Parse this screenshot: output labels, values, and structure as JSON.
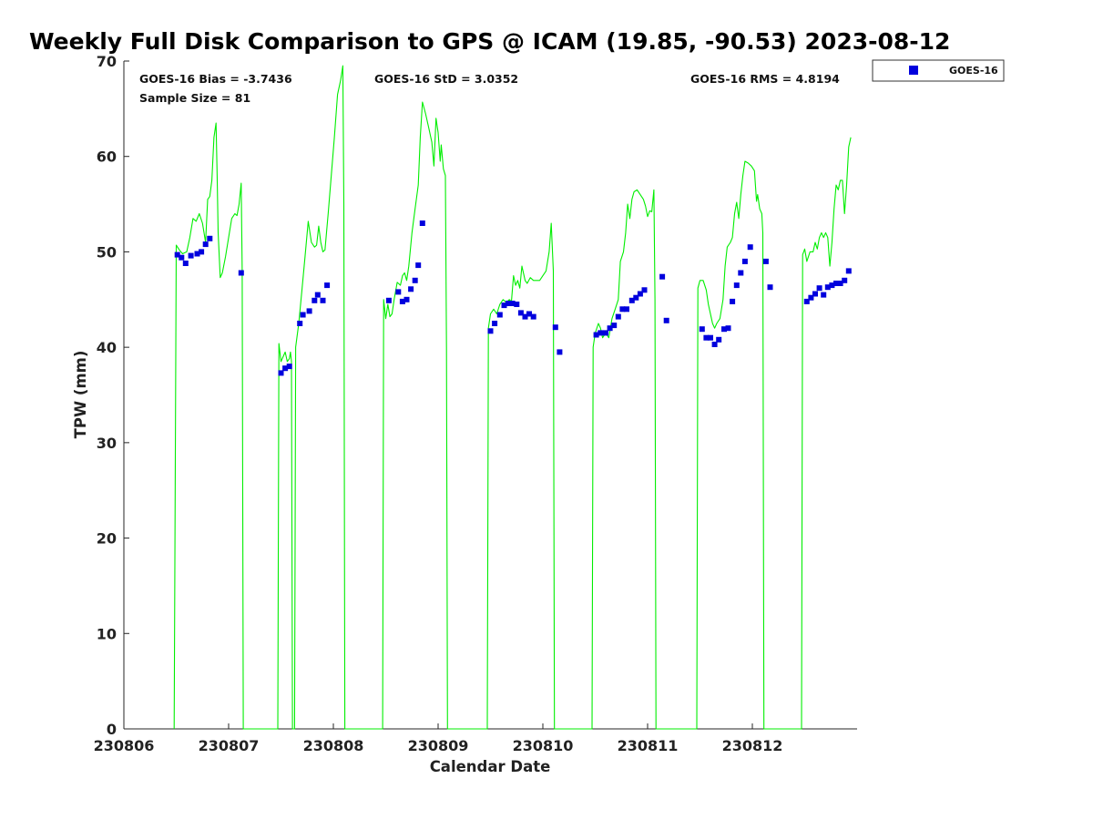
{
  "chart_data": {
    "type": "line+scatter",
    "title": "Weekly Full Disk Comparison to GPS @ ICAM (19.85, -90.53) 2023-08-12",
    "xlabel": "Calendar Date",
    "ylabel": "TPW (mm)",
    "xlim": [
      0,
      7
    ],
    "ylim": [
      0,
      70
    ],
    "x_ticks": [
      {
        "x": 0,
        "label": "230806"
      },
      {
        "x": 1,
        "label": "230807"
      },
      {
        "x": 2,
        "label": "230808"
      },
      {
        "x": 3,
        "label": "230809"
      },
      {
        "x": 4,
        "label": "230810"
      },
      {
        "x": 5,
        "label": "230811"
      },
      {
        "x": 6,
        "label": "230812"
      }
    ],
    "y_ticks": [
      0,
      10,
      20,
      30,
      40,
      50,
      60,
      70
    ],
    "grid": false,
    "legend": {
      "position": "outside-top-right",
      "entries": [
        "GOES-16"
      ]
    },
    "stats": {
      "bias": "GOES-16 Bias = -3.7436",
      "sample": "Sample Size = 81",
      "std": "GOES-16 StD = 3.0352",
      "rms": "GOES-16 RMS = 4.8194"
    },
    "colors": {
      "gps": "#00ee00",
      "goes": "#0000dd"
    },
    "gps_line": [
      [
        0.48,
        0
      ],
      [
        0.5,
        50.7
      ],
      [
        0.53,
        50.2
      ],
      [
        0.56,
        49.8
      ],
      [
        0.6,
        50.0
      ],
      [
        0.63,
        51.5
      ],
      [
        0.66,
        53.5
      ],
      [
        0.69,
        53.2
      ],
      [
        0.72,
        54.0
      ],
      [
        0.75,
        53.0
      ],
      [
        0.78,
        51.0
      ],
      [
        0.8,
        55.5
      ],
      [
        0.82,
        55.8
      ],
      [
        0.84,
        57.5
      ],
      [
        0.86,
        62.0
      ],
      [
        0.88,
        63.5
      ],
      [
        0.89,
        58.0
      ],
      [
        0.9,
        52.0
      ],
      [
        0.92,
        47.3
      ],
      [
        0.94,
        47.8
      ],
      [
        0.97,
        49.5
      ],
      [
        1.0,
        51.5
      ],
      [
        1.03,
        53.5
      ],
      [
        1.06,
        54.0
      ],
      [
        1.08,
        53.8
      ],
      [
        1.1,
        55.0
      ],
      [
        1.12,
        57.2
      ],
      [
        1.13,
        48.0
      ],
      [
        1.14,
        0
      ],
      [
        1.47,
        0
      ],
      [
        1.48,
        40.4
      ],
      [
        1.5,
        38.5
      ],
      [
        1.52,
        39.0
      ],
      [
        1.54,
        39.5
      ],
      [
        1.56,
        38.5
      ],
      [
        1.58,
        38.8
      ],
      [
        1.59,
        39.5
      ],
      [
        1.6,
        38.5
      ],
      [
        1.61,
        0
      ],
      [
        1.63,
        0
      ],
      [
        1.64,
        40.0
      ],
      [
        1.67,
        42.5
      ],
      [
        1.7,
        46.0
      ],
      [
        1.73,
        49.5
      ],
      [
        1.76,
        53.2
      ],
      [
        1.79,
        51.0
      ],
      [
        1.82,
        50.5
      ],
      [
        1.84,
        50.7
      ],
      [
        1.86,
        52.7
      ],
      [
        1.88,
        51.0
      ],
      [
        1.9,
        50.0
      ],
      [
        1.92,
        50.2
      ],
      [
        1.95,
        54.0
      ],
      [
        1.98,
        58.0
      ],
      [
        2.01,
        62.0
      ],
      [
        2.04,
        66.5
      ],
      [
        2.07,
        68.0
      ],
      [
        2.09,
        69.5
      ],
      [
        2.1,
        55.0
      ],
      [
        2.11,
        0
      ],
      [
        2.47,
        0
      ],
      [
        2.48,
        45.0
      ],
      [
        2.5,
        43.0
      ],
      [
        2.52,
        44.5
      ],
      [
        2.54,
        43.2
      ],
      [
        2.56,
        43.5
      ],
      [
        2.58,
        45.0
      ],
      [
        2.61,
        46.8
      ],
      [
        2.64,
        46.5
      ],
      [
        2.66,
        47.5
      ],
      [
        2.68,
        47.8
      ],
      [
        2.7,
        47.0
      ],
      [
        2.72,
        48.5
      ],
      [
        2.75,
        52.0
      ],
      [
        2.78,
        54.5
      ],
      [
        2.81,
        57.0
      ],
      [
        2.83,
        62.0
      ],
      [
        2.85,
        65.7
      ],
      [
        2.88,
        64.5
      ],
      [
        2.91,
        63.0
      ],
      [
        2.94,
        61.5
      ],
      [
        2.96,
        59.0
      ],
      [
        2.98,
        64.0
      ],
      [
        3.0,
        62.5
      ],
      [
        3.02,
        59.5
      ],
      [
        3.03,
        61.2
      ],
      [
        3.05,
        58.7
      ],
      [
        3.07,
        58.0
      ],
      [
        3.08,
        40.0
      ],
      [
        3.09,
        0
      ],
      [
        3.47,
        0
      ],
      [
        3.48,
        42.0
      ],
      [
        3.5,
        43.5
      ],
      [
        3.53,
        44.0
      ],
      [
        3.56,
        43.5
      ],
      [
        3.59,
        44.5
      ],
      [
        3.62,
        45.0
      ],
      [
        3.65,
        44.7
      ],
      [
        3.68,
        45.0
      ],
      [
        3.7,
        44.8
      ],
      [
        3.72,
        47.5
      ],
      [
        3.74,
        46.5
      ],
      [
        3.76,
        47.0
      ],
      [
        3.78,
        46.2
      ],
      [
        3.8,
        48.5
      ],
      [
        3.83,
        47.0
      ],
      [
        3.85,
        46.7
      ],
      [
        3.88,
        47.3
      ],
      [
        3.91,
        47.0
      ],
      [
        3.94,
        47.0
      ],
      [
        3.97,
        47.0
      ],
      [
        4.0,
        47.5
      ],
      [
        4.03,
        48.0
      ],
      [
        4.06,
        50.0
      ],
      [
        4.08,
        53.0
      ],
      [
        4.1,
        48.0
      ],
      [
        4.11,
        0
      ],
      [
        4.47,
        0
      ],
      [
        4.48,
        40.0
      ],
      [
        4.5,
        41.5
      ],
      [
        4.53,
        42.5
      ],
      [
        4.55,
        42.0
      ],
      [
        4.57,
        41.0
      ],
      [
        4.6,
        41.5
      ],
      [
        4.63,
        41.0
      ],
      [
        4.66,
        43.0
      ],
      [
        4.69,
        44.0
      ],
      [
        4.72,
        45.0
      ],
      [
        4.74,
        49.0
      ],
      [
        4.77,
        50.0
      ],
      [
        4.79,
        52.0
      ],
      [
        4.81,
        55.0
      ],
      [
        4.83,
        53.5
      ],
      [
        4.85,
        55.5
      ],
      [
        4.87,
        56.3
      ],
      [
        4.9,
        56.5
      ],
      [
        4.93,
        56.0
      ],
      [
        4.96,
        55.5
      ],
      [
        4.98,
        54.8
      ],
      [
        5.0,
        53.7
      ],
      [
        5.02,
        54.3
      ],
      [
        5.04,
        54.2
      ],
      [
        5.06,
        56.5
      ],
      [
        5.07,
        45.0
      ],
      [
        5.08,
        0
      ],
      [
        5.47,
        0
      ],
      [
        5.48,
        46.2
      ],
      [
        5.5,
        47.0
      ],
      [
        5.53,
        47.0
      ],
      [
        5.56,
        46.0
      ],
      [
        5.58,
        44.5
      ],
      [
        5.6,
        43.5
      ],
      [
        5.62,
        42.5
      ],
      [
        5.64,
        42.0
      ],
      [
        5.66,
        42.5
      ],
      [
        5.69,
        43.0
      ],
      [
        5.72,
        45.0
      ],
      [
        5.74,
        48.5
      ],
      [
        5.76,
        50.5
      ],
      [
        5.79,
        51.0
      ],
      [
        5.81,
        51.5
      ],
      [
        5.83,
        54.0
      ],
      [
        5.85,
        55.2
      ],
      [
        5.87,
        53.5
      ],
      [
        5.89,
        56.0
      ],
      [
        5.91,
        58.0
      ],
      [
        5.93,
        59.5
      ],
      [
        5.96,
        59.3
      ],
      [
        5.99,
        59.0
      ],
      [
        6.02,
        58.5
      ],
      [
        6.04,
        55.3
      ],
      [
        6.05,
        56.0
      ],
      [
        6.07,
        54.5
      ],
      [
        6.09,
        54.0
      ],
      [
        6.1,
        52.0
      ],
      [
        6.11,
        0
      ],
      [
        6.47,
        0
      ],
      [
        6.48,
        49.7
      ],
      [
        6.5,
        50.3
      ],
      [
        6.52,
        49.0
      ],
      [
        6.55,
        50.0
      ],
      [
        6.58,
        50.0
      ],
      [
        6.6,
        51.0
      ],
      [
        6.62,
        50.3
      ],
      [
        6.64,
        51.5
      ],
      [
        6.66,
        52.0
      ],
      [
        6.68,
        51.5
      ],
      [
        6.7,
        52.0
      ],
      [
        6.72,
        51.5
      ],
      [
        6.74,
        48.5
      ],
      [
        6.76,
        51.0
      ],
      [
        6.78,
        54.5
      ],
      [
        6.8,
        57.0
      ],
      [
        6.82,
        56.5
      ],
      [
        6.84,
        57.5
      ],
      [
        6.86,
        57.5
      ],
      [
        6.88,
        54.0
      ],
      [
        6.9,
        57.0
      ],
      [
        6.92,
        61.0
      ],
      [
        6.94,
        62.0
      ]
    ],
    "goes_points": [
      [
        0.51,
        49.7
      ],
      [
        0.55,
        49.4
      ],
      [
        0.59,
        48.8
      ],
      [
        0.64,
        49.6
      ],
      [
        0.7,
        49.8
      ],
      [
        0.74,
        50.0
      ],
      [
        0.78,
        50.8
      ],
      [
        0.82,
        51.4
      ],
      [
        1.12,
        47.8
      ],
      [
        1.5,
        37.3
      ],
      [
        1.54,
        37.8
      ],
      [
        1.58,
        38.0
      ],
      [
        1.68,
        42.5
      ],
      [
        1.71,
        43.4
      ],
      [
        1.77,
        43.8
      ],
      [
        1.82,
        44.9
      ],
      [
        1.85,
        45.5
      ],
      [
        1.9,
        44.9
      ],
      [
        1.94,
        46.5
      ],
      [
        2.53,
        44.9
      ],
      [
        2.62,
        45.8
      ],
      [
        2.66,
        44.8
      ],
      [
        2.7,
        45.0
      ],
      [
        2.74,
        46.1
      ],
      [
        2.78,
        47.0
      ],
      [
        2.81,
        48.6
      ],
      [
        2.85,
        53.0
      ],
      [
        3.5,
        41.7
      ],
      [
        3.54,
        42.5
      ],
      [
        3.59,
        43.4
      ],
      [
        3.63,
        44.4
      ],
      [
        3.67,
        44.6
      ],
      [
        3.71,
        44.6
      ],
      [
        3.75,
        44.5
      ],
      [
        3.79,
        43.6
      ],
      [
        3.83,
        43.2
      ],
      [
        3.87,
        43.5
      ],
      [
        3.91,
        43.2
      ],
      [
        4.12,
        42.1
      ],
      [
        4.16,
        39.5
      ],
      [
        4.51,
        41.3
      ],
      [
        4.55,
        41.5
      ],
      [
        4.6,
        41.5
      ],
      [
        4.64,
        42.0
      ],
      [
        4.68,
        42.3
      ],
      [
        4.72,
        43.2
      ],
      [
        4.76,
        44.0
      ],
      [
        4.8,
        44.0
      ],
      [
        4.85,
        44.9
      ],
      [
        4.89,
        45.2
      ],
      [
        4.93,
        45.6
      ],
      [
        4.97,
        46.0
      ],
      [
        5.14,
        47.4
      ],
      [
        5.18,
        42.8
      ],
      [
        5.52,
        41.9
      ],
      [
        5.56,
        41.0
      ],
      [
        5.6,
        41.0
      ],
      [
        5.64,
        40.3
      ],
      [
        5.68,
        40.8
      ],
      [
        5.73,
        41.9
      ],
      [
        5.77,
        42.0
      ],
      [
        5.81,
        44.8
      ],
      [
        5.85,
        46.5
      ],
      [
        5.89,
        47.8
      ],
      [
        5.93,
        49.0
      ],
      [
        5.98,
        50.5
      ],
      [
        6.13,
        49.0
      ],
      [
        6.17,
        46.3
      ],
      [
        6.52,
        44.8
      ],
      [
        6.56,
        45.2
      ],
      [
        6.6,
        45.6
      ],
      [
        6.64,
        46.2
      ],
      [
        6.68,
        45.5
      ],
      [
        6.72,
        46.3
      ],
      [
        6.76,
        46.5
      ],
      [
        6.8,
        46.7
      ],
      [
        6.84,
        46.7
      ],
      [
        6.88,
        47.0
      ],
      [
        6.92,
        48.0
      ]
    ]
  }
}
